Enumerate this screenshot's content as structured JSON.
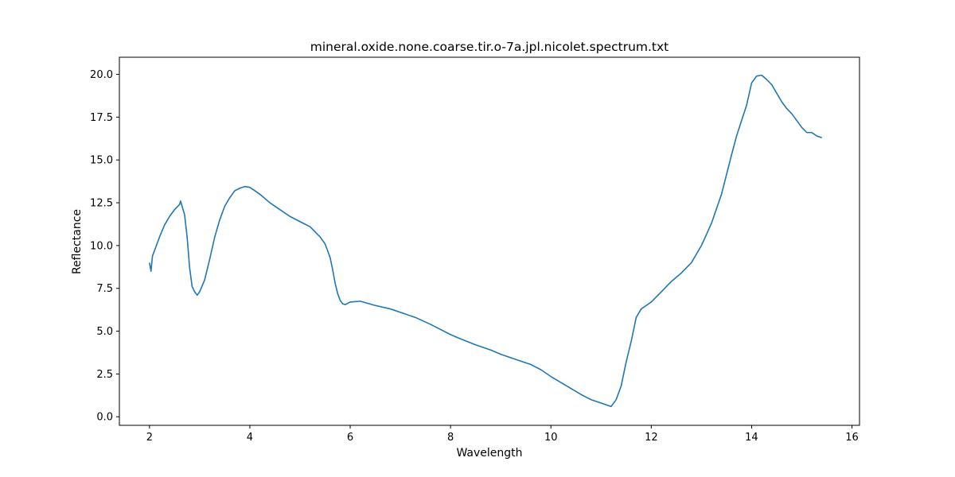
{
  "chart_data": {
    "type": "line",
    "title": "mineral.oxide.none.coarse.tir.o-7a.jpl.nicolet.spectrum.txt",
    "xlabel": "Wavelength",
    "ylabel": "Reflectance",
    "xlim": [
      1.4,
      16.15
    ],
    "ylim": [
      -0.5,
      21.0
    ],
    "xticks": [
      2,
      4,
      6,
      8,
      10,
      12,
      14,
      16
    ],
    "xtick_labels": [
      "2",
      "4",
      "6",
      "8",
      "10",
      "12",
      "14",
      "16"
    ],
    "yticks": [
      0.0,
      2.5,
      5.0,
      7.5,
      10.0,
      12.5,
      15.0,
      17.5,
      20.0
    ],
    "ytick_labels": [
      "0.0",
      "2.5",
      "5.0",
      "7.5",
      "10.0",
      "12.5",
      "15.0",
      "17.5",
      "20.0"
    ],
    "grid": false,
    "line_color": "#1f77b4",
    "series": [
      {
        "x": [
          2.0,
          2.03,
          2.06,
          2.1,
          2.15,
          2.2,
          2.3,
          2.4,
          2.5,
          2.6,
          2.62,
          2.65,
          2.7,
          2.75,
          2.8,
          2.85,
          2.9,
          2.95,
          3.0,
          3.1,
          3.2,
          3.3,
          3.4,
          3.5,
          3.6,
          3.7,
          3.8,
          3.9,
          4.0,
          4.1,
          4.2,
          4.4,
          4.6,
          4.8,
          5.0,
          5.2,
          5.4,
          5.5,
          5.6,
          5.65,
          5.7,
          5.75,
          5.8,
          5.85,
          5.9,
          6.0,
          6.2,
          6.5,
          6.8,
          7.0,
          7.3,
          7.6,
          8.0,
          8.2,
          8.5,
          8.8,
          9.0,
          9.3,
          9.6,
          9.8,
          10.0,
          10.2,
          10.4,
          10.6,
          10.8,
          11.0,
          11.1,
          11.2,
          11.3,
          11.4,
          11.5,
          11.6,
          11.7,
          11.8,
          11.9,
          12.0,
          12.2,
          12.4,
          12.6,
          12.8,
          13.0,
          13.2,
          13.4,
          13.6,
          13.7,
          13.8,
          13.9,
          14.0,
          14.1,
          14.2,
          14.3,
          14.4,
          14.5,
          14.6,
          14.7,
          14.8,
          14.9,
          15.0,
          15.1,
          15.2,
          15.3,
          15.4
        ],
        "y": [
          9.0,
          8.5,
          9.4,
          9.7,
          10.1,
          10.5,
          11.2,
          11.7,
          12.1,
          12.4,
          12.6,
          12.3,
          11.8,
          10.5,
          8.7,
          7.6,
          7.3,
          7.1,
          7.3,
          8.0,
          9.2,
          10.5,
          11.5,
          12.3,
          12.8,
          13.2,
          13.35,
          13.45,
          13.4,
          13.2,
          13.0,
          12.5,
          12.1,
          11.7,
          11.4,
          11.1,
          10.5,
          10.1,
          9.3,
          8.6,
          7.8,
          7.2,
          6.8,
          6.6,
          6.55,
          6.7,
          6.75,
          6.5,
          6.3,
          6.1,
          5.8,
          5.4,
          4.8,
          4.55,
          4.2,
          3.9,
          3.65,
          3.35,
          3.05,
          2.75,
          2.35,
          2.0,
          1.65,
          1.3,
          1.0,
          0.8,
          0.7,
          0.6,
          1.0,
          1.8,
          3.2,
          4.4,
          5.8,
          6.3,
          6.5,
          6.7,
          7.3,
          7.9,
          8.4,
          9.0,
          10.0,
          11.3,
          13.0,
          15.3,
          16.4,
          17.3,
          18.2,
          19.5,
          19.9,
          19.95,
          19.7,
          19.4,
          18.9,
          18.4,
          18.0,
          17.7,
          17.3,
          16.9,
          16.6,
          16.6,
          16.4,
          16.3
        ]
      }
    ]
  }
}
